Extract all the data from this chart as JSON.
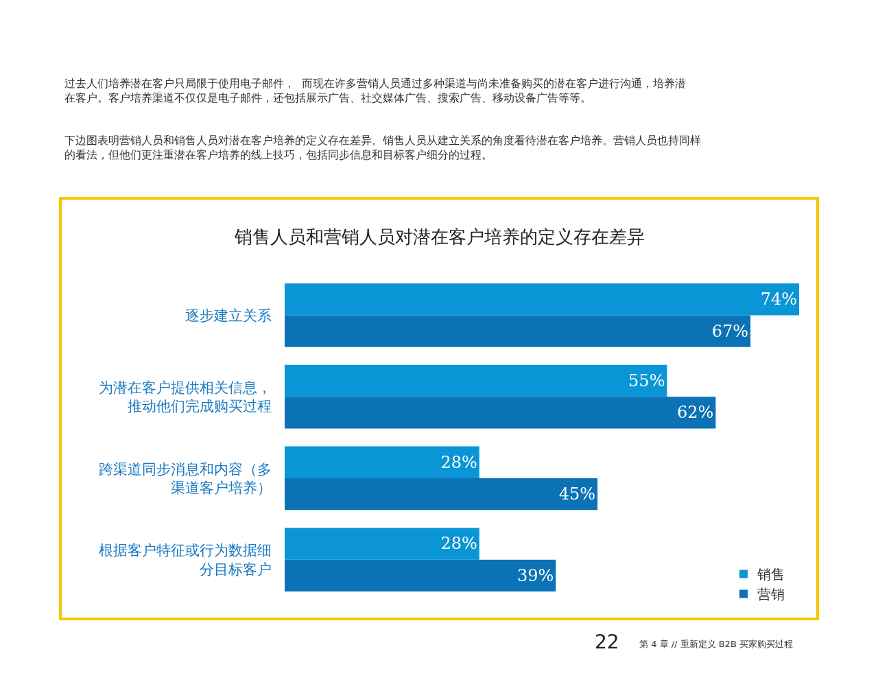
{
  "chart_data": {
    "type": "bar",
    "orientation": "horizontal",
    "title": "销售人员和营销人员对潜在客户培养的定义存在差异",
    "categories": [
      "逐步建立关系",
      "为潜在客户提供相关信息，推动他们完成购买过程",
      "跨渠道同步消息和内容（多渠道客户培养）",
      "根据客户特征或行为数据细分目标客户"
    ],
    "series": [
      {
        "name": "销售",
        "color": "#0a96d6",
        "values": [
          74,
          55,
          28,
          28
        ],
        "value_labels": [
          "74%",
          "55%",
          "28%",
          "28%"
        ]
      },
      {
        "name": "营销",
        "color": "#0b72b5",
        "values": [
          67,
          62,
          45,
          39
        ],
        "value_labels": [
          "67%",
          "62%",
          "45%",
          "39%"
        ]
      }
    ],
    "legend": "bottom right",
    "annotations": [
      "过去人们培养潜在客户只局限于使用电子邮件，  而现在许多营销人员通过多种渠道与尚未准备购买的潜在客户进行沟通，培养潜在客户。客户培养渠道不仅仅是电子邮件，还包括展示广告、社交媒体广告、搜索广告、移动设备广告等等。",
      "下边图表明营销人员和销售人员对潜在客户培养的定义存在差异。销售人员从建立关系的角度看待潜在客户培养。营销人员也持同样的看法，但他们更注重潜在客户培养的线上技巧，包括同步信息和目标客户细分的过程。",
      "22",
      "第 4 章 // 重新定义 B2B 买家购买过程"
    ]
  }
}
